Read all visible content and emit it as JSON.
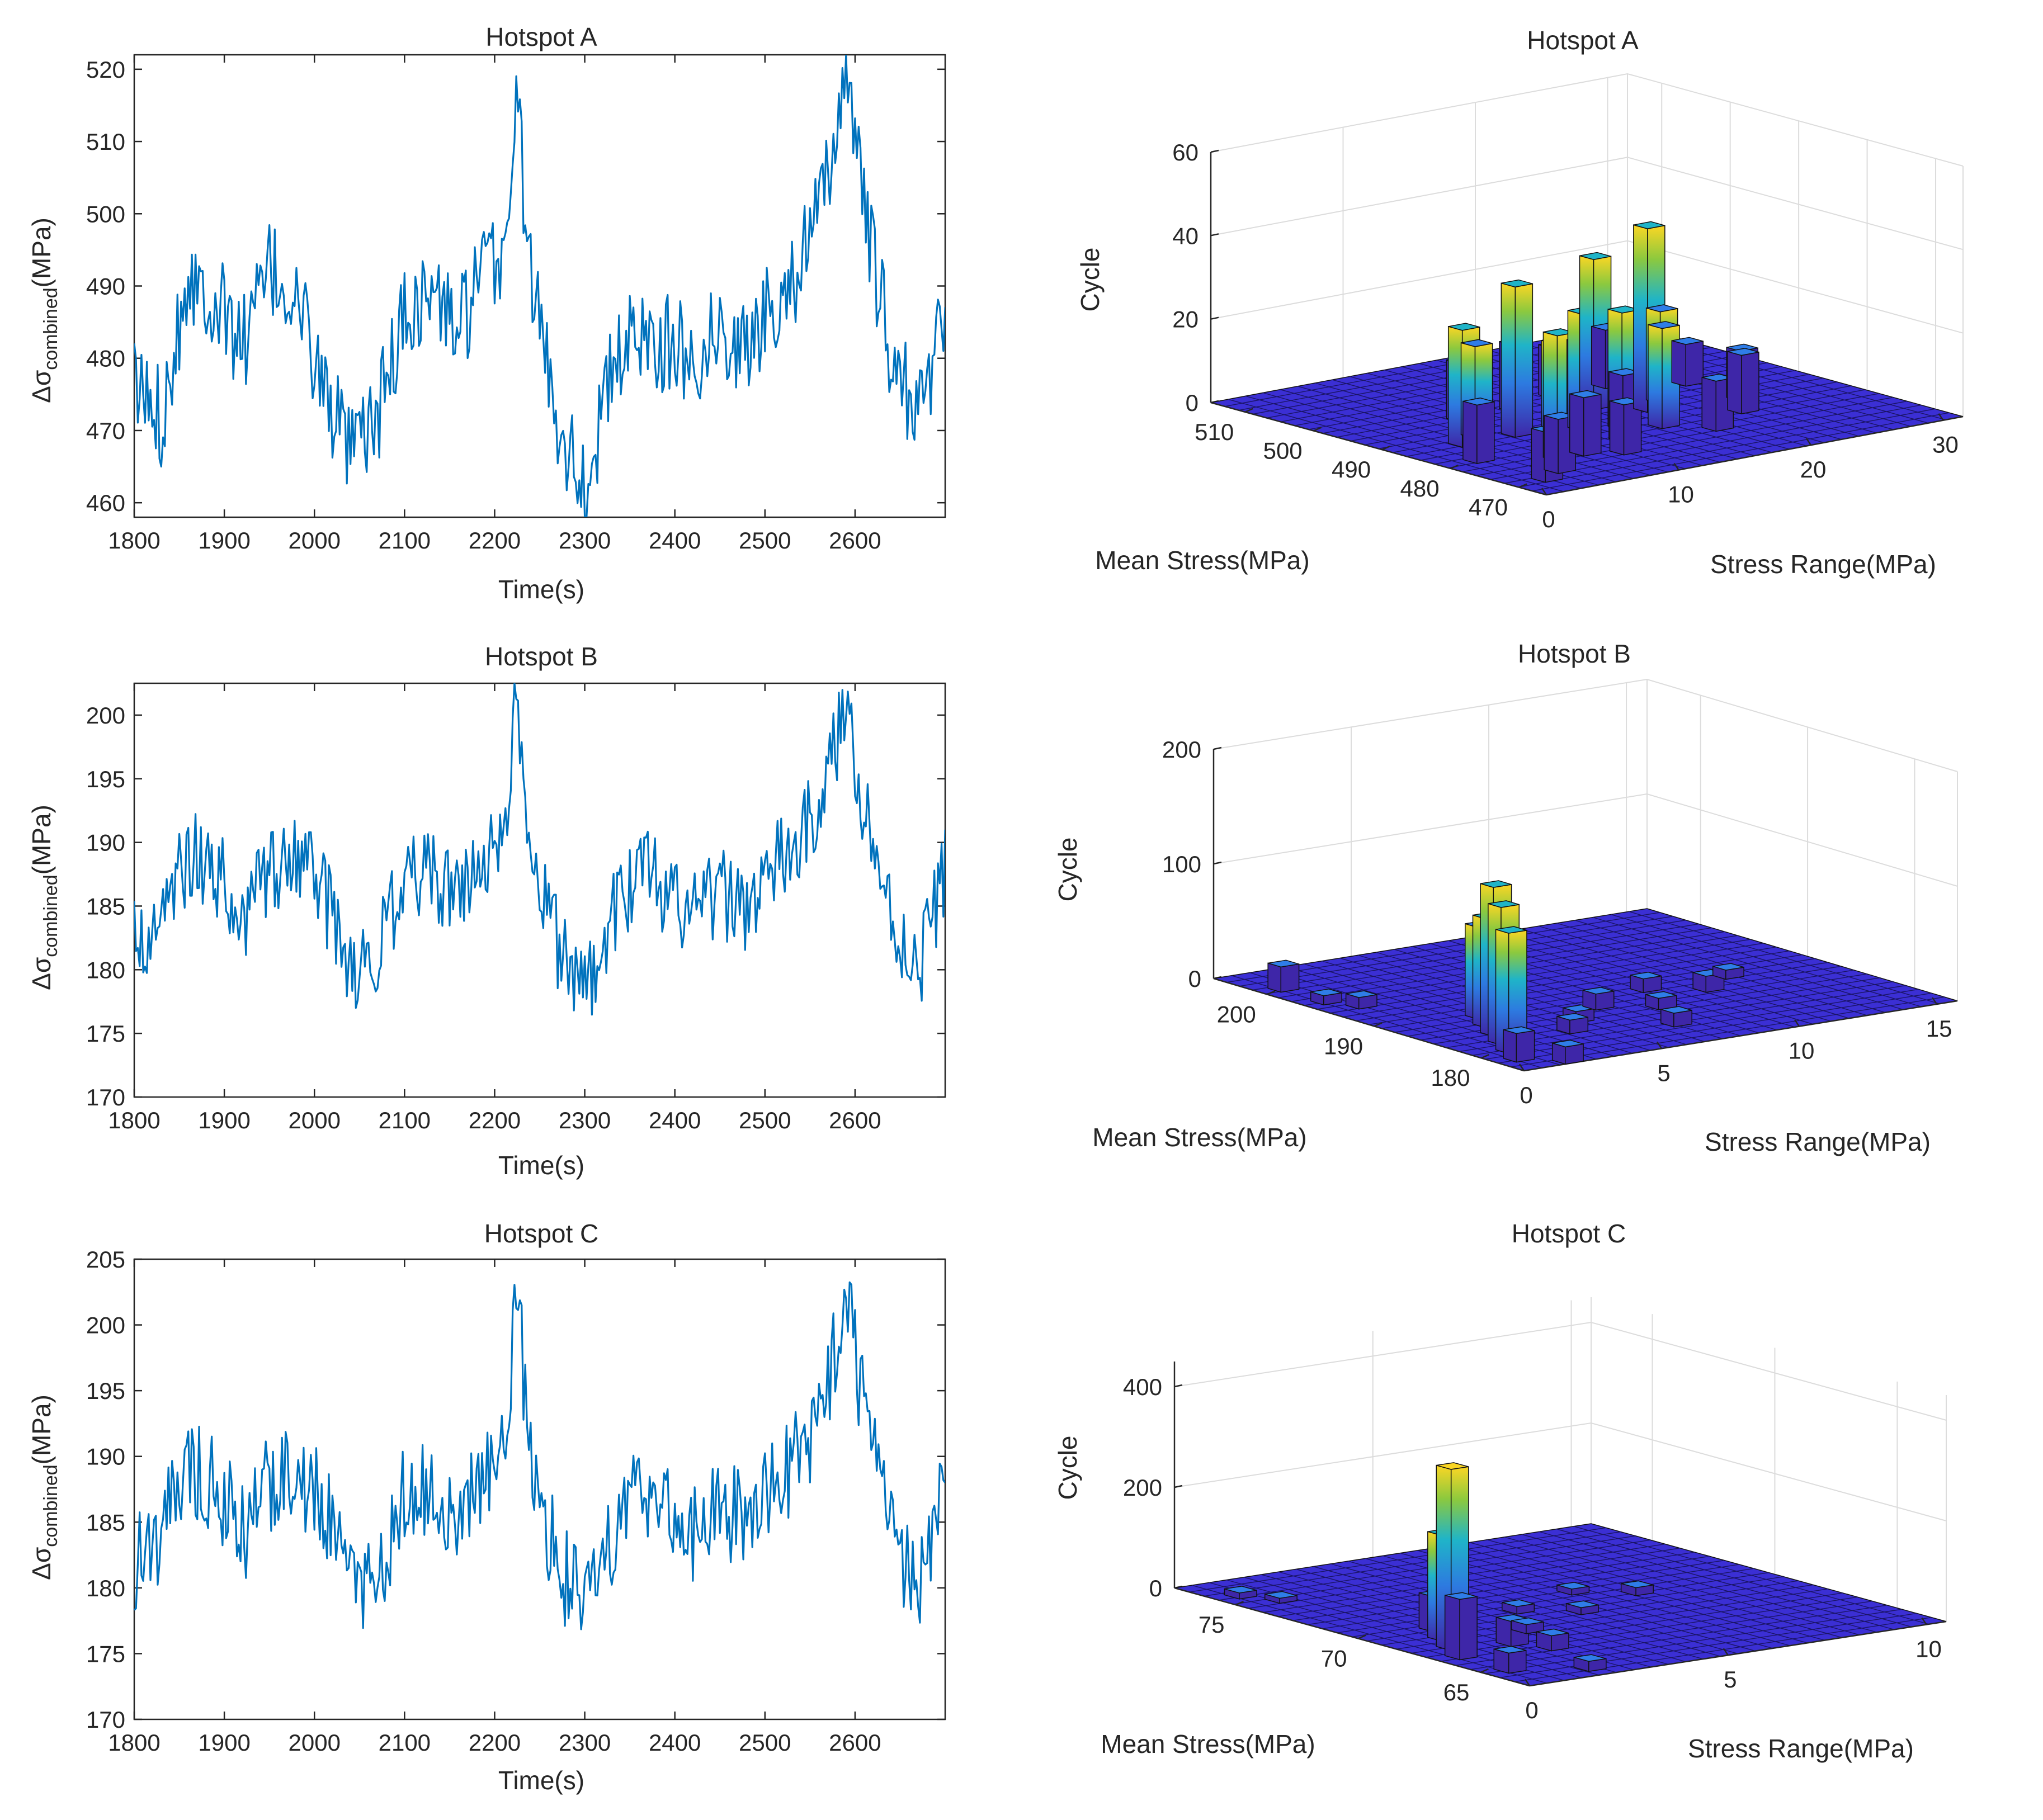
{
  "figure": {
    "colors": {
      "line": "#0072BD",
      "axis": "#262626",
      "grid": "#dcdcdc",
      "floor": "#3b2fd4",
      "bar_low": "#3e26a8",
      "bar_mid": "#1fb4c8",
      "bar_high": "#fbd624"
    }
  },
  "chart_data": [
    {
      "type": "line",
      "title": "Hotspot A",
      "xlabel": "Time(s)",
      "ylabel_main": "Δσ",
      "ylabel_sub": "combined",
      "ylabel_unit": "(MPa)",
      "xlim": [
        1800,
        2700
      ],
      "ylim": [
        458,
        522
      ],
      "xticks": [
        1800,
        1900,
        2000,
        2100,
        2200,
        2300,
        2400,
        2500,
        2600
      ],
      "yticks": [
        460,
        470,
        480,
        490,
        500,
        510,
        520
      ],
      "x": [
        1800,
        1830,
        1860,
        1890,
        1920,
        1950,
        1980,
        2010,
        2040,
        2070,
        2100,
        2130,
        2160,
        2190,
        2210,
        2225,
        2240,
        2270,
        2300,
        2330,
        2360,
        2390,
        2420,
        2450,
        2480,
        2510,
        2540,
        2570,
        2590,
        2610,
        2640,
        2670,
        2700
      ],
      "series": [
        {
          "name": "Hotspot A",
          "values": [
            476,
            472,
            492,
            488,
            482,
            492,
            488,
            476,
            466,
            472,
            486,
            489,
            484,
            492,
            494,
            516,
            491,
            472,
            462,
            478,
            484,
            482,
            480,
            484,
            481,
            488,
            493,
            504,
            522,
            500,
            480,
            472,
            487
          ]
        }
      ]
    },
    {
      "type": "line",
      "title": "Hotspot B",
      "xlabel": "Time(s)",
      "ylabel_main": "Δσ",
      "ylabel_sub": "combined",
      "ylabel_unit": "(MPa)",
      "xlim": [
        1800,
        2700
      ],
      "ylim": [
        170,
        202.5
      ],
      "xticks": [
        1800,
        1900,
        2000,
        2100,
        2200,
        2300,
        2400,
        2500,
        2600
      ],
      "yticks": [
        170,
        175,
        180,
        185,
        190,
        195,
        200
      ],
      "x": [
        1800,
        1830,
        1860,
        1890,
        1920,
        1950,
        1980,
        2010,
        2040,
        2070,
        2100,
        2130,
        2160,
        2190,
        2210,
        2225,
        2240,
        2270,
        2300,
        2330,
        2360,
        2390,
        2420,
        2450,
        2480,
        2510,
        2540,
        2570,
        2590,
        2610,
        2640,
        2670,
        2700
      ],
      "series": [
        {
          "name": "Hotspot B",
          "values": [
            182,
            184,
            189,
            188,
            184,
            188,
            189,
            186,
            180,
            181,
            187,
            188,
            185,
            189,
            191,
            202,
            189,
            182,
            178,
            184,
            188,
            186,
            184,
            186,
            185,
            188,
            190,
            195,
            201,
            193,
            184,
            180,
            188
          ]
        }
      ]
    },
    {
      "type": "line",
      "title": "Hotspot C",
      "xlabel": "Time(s)",
      "ylabel_main": "Δσ",
      "ylabel_sub": "combined",
      "ylabel_unit": "(MPa)",
      "xlim": [
        1800,
        2700
      ],
      "ylim": [
        170,
        205
      ],
      "xticks": [
        1800,
        1900,
        2000,
        2100,
        2200,
        2300,
        2400,
        2500,
        2600
      ],
      "yticks": [
        170,
        175,
        180,
        185,
        190,
        195,
        200,
        205
      ],
      "x": [
        1800,
        1830,
        1860,
        1890,
        1920,
        1950,
        1980,
        2010,
        2040,
        2070,
        2100,
        2130,
        2160,
        2190,
        2210,
        2225,
        2240,
        2270,
        2300,
        2330,
        2360,
        2390,
        2420,
        2450,
        2480,
        2510,
        2540,
        2570,
        2590,
        2610,
        2640,
        2670,
        2700
      ],
      "series": [
        {
          "name": "Hotspot C",
          "values": [
            182,
            184,
            189,
            188,
            184,
            188,
            189,
            186,
            180,
            181,
            187,
            188,
            185,
            189,
            191,
            202,
            189,
            182,
            178,
            184,
            188,
            186,
            184,
            186,
            185,
            188,
            190,
            195,
            202,
            193,
            184,
            180,
            188
          ]
        }
      ]
    },
    {
      "type": "bar3d",
      "title": "Hotspot A",
      "zlabel": "Cycle",
      "xlabel": "Stress Range(MPa)",
      "ylabel": "Mean Stress(MPa)",
      "zlim": [
        0,
        60
      ],
      "zticks": [
        0,
        20,
        40,
        60
      ],
      "range_ticks": [
        0,
        10,
        20,
        30
      ],
      "mean_ticks": [
        510,
        500,
        490,
        480,
        470
      ],
      "bars": [
        {
          "range": 2,
          "mean": 470,
          "cycles": 12
        },
        {
          "range": 4,
          "mean": 472,
          "cycles": 13
        },
        {
          "range": 6,
          "mean": 476,
          "cycles": 30
        },
        {
          "range": 8,
          "mean": 476,
          "cycles": 14
        },
        {
          "range": 10,
          "mean": 474,
          "cycles": 12
        },
        {
          "range": 12,
          "mean": 478,
          "cycles": 16
        },
        {
          "range": 14,
          "mean": 482,
          "cycles": 28
        },
        {
          "range": 16,
          "mean": 480,
          "cycles": 24
        },
        {
          "range": 4,
          "mean": 486,
          "cycles": 28
        },
        {
          "range": 6,
          "mean": 488,
          "cycles": 22
        },
        {
          "range": 8,
          "mean": 486,
          "cycles": 36
        },
        {
          "range": 10,
          "mean": 484,
          "cycles": 22
        },
        {
          "range": 12,
          "mean": 484,
          "cycles": 28
        },
        {
          "range": 14,
          "mean": 488,
          "cycles": 18
        },
        {
          "range": 16,
          "mean": 490,
          "cycles": 36
        },
        {
          "range": 18,
          "mean": 486,
          "cycles": 44
        },
        {
          "range": 20,
          "mean": 488,
          "cycles": 22
        },
        {
          "range": 18,
          "mean": 476,
          "cycles": 12
        },
        {
          "range": 22,
          "mean": 480,
          "cycles": 14
        },
        {
          "range": 24,
          "mean": 484,
          "cycles": 12
        },
        {
          "range": 8,
          "mean": 494,
          "cycles": 14
        },
        {
          "range": 12,
          "mean": 494,
          "cycles": 16
        },
        {
          "range": 16,
          "mean": 496,
          "cycles": 12
        },
        {
          "range": 20,
          "mean": 496,
          "cycles": 14
        },
        {
          "range": 2,
          "mean": 480,
          "cycles": 14
        },
        {
          "range": 24,
          "mean": 492,
          "cycles": 10
        }
      ]
    },
    {
      "type": "bar3d",
      "title": "Hotspot B",
      "zlabel": "Cycle",
      "xlabel": "Stress Range(MPa)",
      "ylabel": "Mean Stress(MPa)",
      "zlim": [
        0,
        200
      ],
      "zticks": [
        0,
        100,
        200
      ],
      "range_ticks": [
        0,
        5,
        10,
        15
      ],
      "mean_ticks": [
        200,
        190,
        180
      ],
      "bars": [
        {
          "range": 0.5,
          "mean": 178,
          "cycles": 25
        },
        {
          "range": 1.0,
          "mean": 180,
          "cycles": 105
        },
        {
          "range": 1.5,
          "mean": 182,
          "cycles": 120
        },
        {
          "range": 2.0,
          "mean": 184,
          "cycles": 130
        },
        {
          "range": 2.5,
          "mean": 186,
          "cycles": 95
        },
        {
          "range": 3.0,
          "mean": 188,
          "cycles": 80
        },
        {
          "range": 1.5,
          "mean": 176,
          "cycles": 15
        },
        {
          "range": 0.5,
          "mean": 200,
          "cycles": 22
        },
        {
          "range": 0.5,
          "mean": 196,
          "cycles": 8
        },
        {
          "range": 1.0,
          "mean": 194,
          "cycles": 10
        },
        {
          "range": 4.0,
          "mean": 182,
          "cycles": 12
        },
        {
          "range": 5.0,
          "mean": 184,
          "cycles": 10
        },
        {
          "range": 6.5,
          "mean": 186,
          "cycles": 14
        },
        {
          "range": 8.0,
          "mean": 184,
          "cycles": 10
        },
        {
          "range": 9.0,
          "mean": 188,
          "cycles": 12
        },
        {
          "range": 10.5,
          "mean": 186,
          "cycles": 14
        },
        {
          "range": 7.0,
          "mean": 180,
          "cycles": 12
        },
        {
          "range": 12.0,
          "mean": 188,
          "cycles": 8
        }
      ]
    },
    {
      "type": "bar3d",
      "title": "Hotspot C",
      "zlabel": "Cycle",
      "xlabel": "Stress Range(MPa)",
      "ylabel": "Mean Stress(MPa)",
      "zlim": [
        0,
        450
      ],
      "zticks": [
        0,
        200,
        400
      ],
      "range_ticks": [
        0,
        5,
        10
      ],
      "mean_ticks": [
        75,
        70,
        65
      ],
      "bars": [
        {
          "range": 0.4,
          "mean": 66.5,
          "cycles": 120
        },
        {
          "range": 0.8,
          "mean": 67.5,
          "cycles": 360
        },
        {
          "range": 1.2,
          "mean": 68.5,
          "cycles": 210
        },
        {
          "range": 1.6,
          "mean": 69.5,
          "cycles": 70
        },
        {
          "range": 0.4,
          "mean": 64.5,
          "cycles": 40
        },
        {
          "range": 2.0,
          "mean": 67.0,
          "cycles": 50
        },
        {
          "range": 2.4,
          "mean": 66.0,
          "cycles": 30
        },
        {
          "range": 0.4,
          "mean": 75.5,
          "cycles": 12
        },
        {
          "range": 0.8,
          "mean": 74.5,
          "cycles": 10
        },
        {
          "range": 3.0,
          "mean": 68.0,
          "cycles": 18
        },
        {
          "range": 4.0,
          "mean": 70.0,
          "cycles": 15
        },
        {
          "range": 5.0,
          "mean": 69.0,
          "cycles": 14
        },
        {
          "range": 6.0,
          "mean": 71.0,
          "cycles": 12
        },
        {
          "range": 7.0,
          "mean": 70.0,
          "cycles": 16
        },
        {
          "range": 1.8,
          "mean": 63.5,
          "cycles": 20
        }
      ]
    }
  ]
}
